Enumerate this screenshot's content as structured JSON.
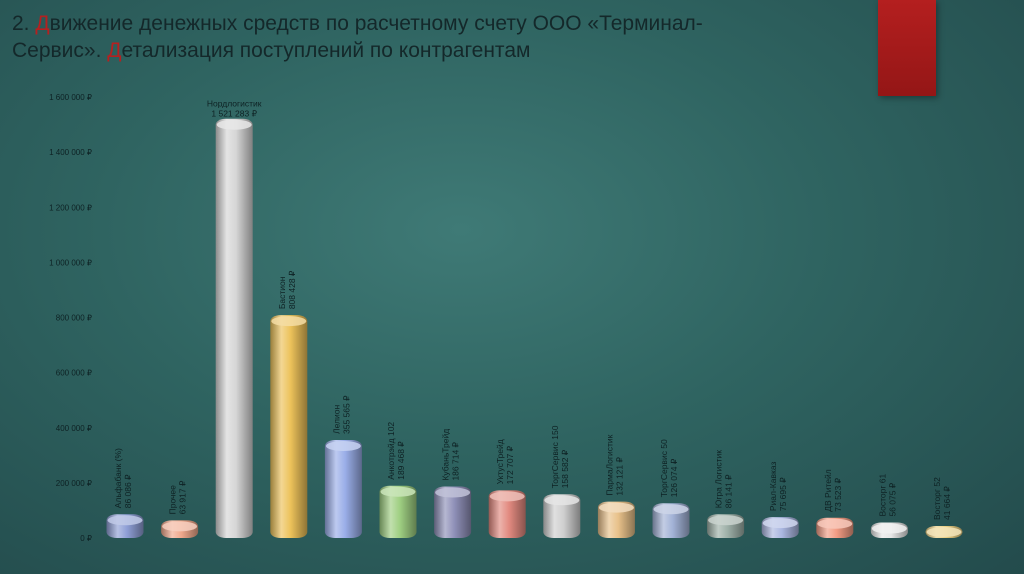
{
  "title": {
    "line1_prefix": "2. ",
    "line1_red": "Д",
    "line1_rest": "вижение денежных средств по расчетному счету ООО «Терминал-",
    "line2_start": "Сервис». ",
    "line2_red": "Д",
    "line2_rest": "етализация поступлений по контрагентам"
  },
  "colors": {
    "accent": "#b41f1f",
    "title_text": "#14282a"
  },
  "chart_data": {
    "type": "bar",
    "ylim": [
      0,
      1600000
    ],
    "y_ticks": [
      {
        "value": 0,
        "label": "0 ₽"
      },
      {
        "value": 200000,
        "label": "200 000 ₽"
      },
      {
        "value": 400000,
        "label": "400 000 ₽"
      },
      {
        "value": 600000,
        "label": "600 000 ₽"
      },
      {
        "value": 800000,
        "label": "800 000 ₽"
      },
      {
        "value": 1000000,
        "label": "1 000 000 ₽"
      },
      {
        "value": 1200000,
        "label": "1 200 000 ₽"
      },
      {
        "value": 1400000,
        "label": "1 400 000 ₽"
      },
      {
        "value": 1600000,
        "label": "1 600 000 ₽"
      }
    ],
    "categories": [
      "Альфабанк (%)",
      "Прочее",
      "Нордлогистик",
      "Бастион",
      "Лелион",
      "Анкотрэйд 102",
      "КубаньТрейд",
      "УктусТрейд",
      "ТоргСервис 150",
      "ПармаЛогистик",
      "ТоргСервис 50",
      "Югра Логистик",
      "Риал-Кавказ",
      "ДВ Ритейл",
      "Восторг 61",
      "Восторг 52"
    ],
    "values": [
      86086,
      63917,
      1521283,
      808428,
      355565,
      189468,
      186714,
      172707,
      158582,
      132121,
      126074,
      86141,
      75695,
      73523,
      56075,
      41664
    ],
    "value_labels": [
      "86 086 ₽",
      "63 917 ₽",
      "1 521 283 ₽",
      "808 428 ₽",
      "355 565 ₽",
      "189 468 ₽",
      "186 714 ₽",
      "172 707 ₽",
      "158 582 ₽",
      "132 121 ₽",
      "126 074 ₽",
      "86 141 ₽",
      "75 695 ₽",
      "73 523 ₽",
      "56 075 ₽",
      "41 664 ₽"
    ],
    "bar_colors": [
      "#8f9fd6",
      "#f0a88c",
      "#d6d6d6",
      "#ecc25a",
      "#9aaee8",
      "#9fcf82",
      "#8f90b8",
      "#e28a80",
      "#cfcfcf",
      "#e8c18a",
      "#a2b2d6",
      "#9eb0a8",
      "#aab6e0",
      "#f29c84",
      "#e6e6e6",
      "#ebd084"
    ],
    "label_orientation": [
      "rotated",
      "rotated",
      "horizontal",
      "rotated",
      "rotated",
      "rotated",
      "rotated",
      "rotated",
      "rotated",
      "rotated",
      "rotated",
      "rotated",
      "rotated",
      "rotated",
      "rotated",
      "rotated"
    ],
    "grid": false,
    "legend": "none"
  }
}
